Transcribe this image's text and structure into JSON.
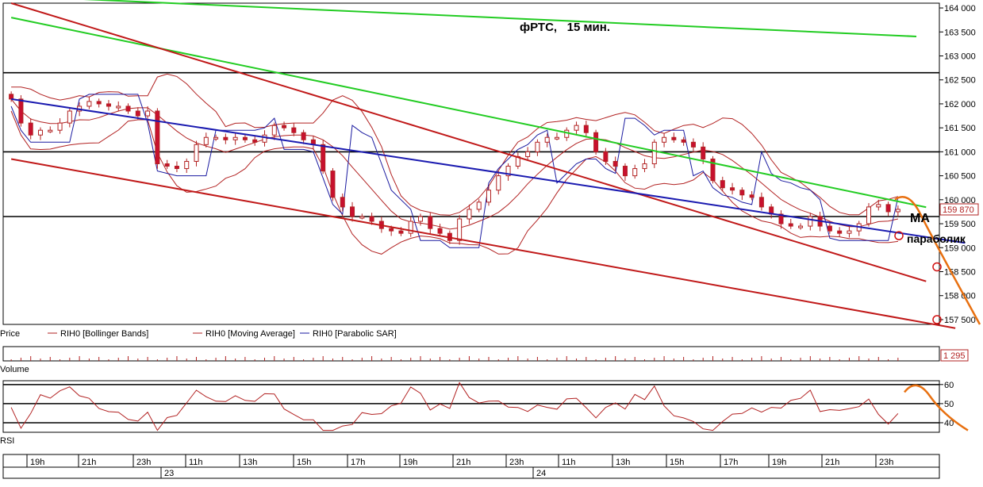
{
  "chart_data": [
    {
      "type": "candlestick",
      "title": "фРТС,   15 мин.",
      "y_ticks": [
        "164 000",
        "163 500",
        "163 000",
        "162 500",
        "162 000",
        "161 500",
        "161 000",
        "160 500",
        "160 000",
        "159 500",
        "159 000",
        "158 500",
        "158 000",
        "157 500"
      ],
      "ylim": [
        157400,
        164100
      ],
      "last_price_label": "159 870",
      "last_price": 159870,
      "legend": [
        {
          "label": "Price",
          "color": "#000000"
        },
        {
          "label": "RIH0 [Bollinger Bands]",
          "color": "#b22222"
        },
        {
          "label": "RIH0 [Moving Average]",
          "color": "#b22222"
        },
        {
          "label": "RIH0 [Parabolic SAR]",
          "color": "#1a1aa0"
        }
      ],
      "annotations": [
        "MA",
        "параболик"
      ],
      "horizontal_levels": [
        162650,
        161000,
        159650
      ],
      "candle_closes": [
        162100,
        161600,
        161350,
        161450,
        161450,
        161600,
        161850,
        161950,
        162050,
        162000,
        161950,
        161950,
        161850,
        161750,
        161850,
        160750,
        160700,
        160650,
        160800,
        161150,
        161300,
        161300,
        161250,
        161300,
        161250,
        161200,
        161350,
        161550,
        161500,
        161400,
        161250,
        161150,
        160600,
        160050,
        159850,
        159650,
        159650,
        159550,
        159400,
        159350,
        159300,
        159550,
        159650,
        159400,
        159300,
        159150,
        159600,
        159800,
        159950,
        160200,
        160500,
        160700,
        160900,
        161000,
        161200,
        161300,
        161300,
        161450,
        161550,
        161400,
        161000,
        160800,
        160700,
        160500,
        160650,
        160750,
        161200,
        161300,
        161250,
        161200,
        161100,
        160850,
        160400,
        160250,
        160200,
        160100,
        160050,
        159850,
        159700,
        159500,
        159450,
        159450,
        159650,
        159450,
        159350,
        159300,
        159350,
        159500,
        159850,
        159900,
        159750,
        159800
      ],
      "trend_lines": [
        {
          "name": "green-upper",
          "points": [
            [
              0,
              164250
            ],
            [
              88,
              163450
            ]
          ]
        },
        {
          "name": "green-lower",
          "points": [
            [
              0,
              163800
            ],
            [
              89,
              160050
            ]
          ]
        },
        {
          "name": "red-upper",
          "points": [
            [
              0,
              164100
            ],
            [
              89,
              158600
            ]
          ]
        },
        {
          "name": "red-lower",
          "points": [
            [
              0,
              160850
            ],
            [
              92,
              157500
            ]
          ]
        },
        {
          "name": "blue-ma",
          "points": [
            [
              0,
              162100
            ],
            [
              93,
              159250
            ]
          ]
        }
      ],
      "forecast_points": [
        159250,
        158600,
        157500
      ]
    },
    {
      "type": "bar",
      "ylabel": "Volume",
      "value_label": "1 295"
    },
    {
      "type": "line",
      "ylabel": "RSI",
      "y_ticks": [
        "60",
        "50",
        "40"
      ],
      "ylim": [
        35,
        62
      ],
      "levels": [
        60,
        50,
        40
      ]
    }
  ],
  "time_axis": {
    "hours": [
      "19h",
      "21h",
      "23h",
      "11h",
      "13h",
      "15h",
      "17h",
      "19h",
      "21h",
      "23h",
      "11h",
      "13h",
      "15h",
      "17h",
      "19h",
      "21h",
      "23h"
    ],
    "days": [
      "23",
      "24"
    ]
  }
}
